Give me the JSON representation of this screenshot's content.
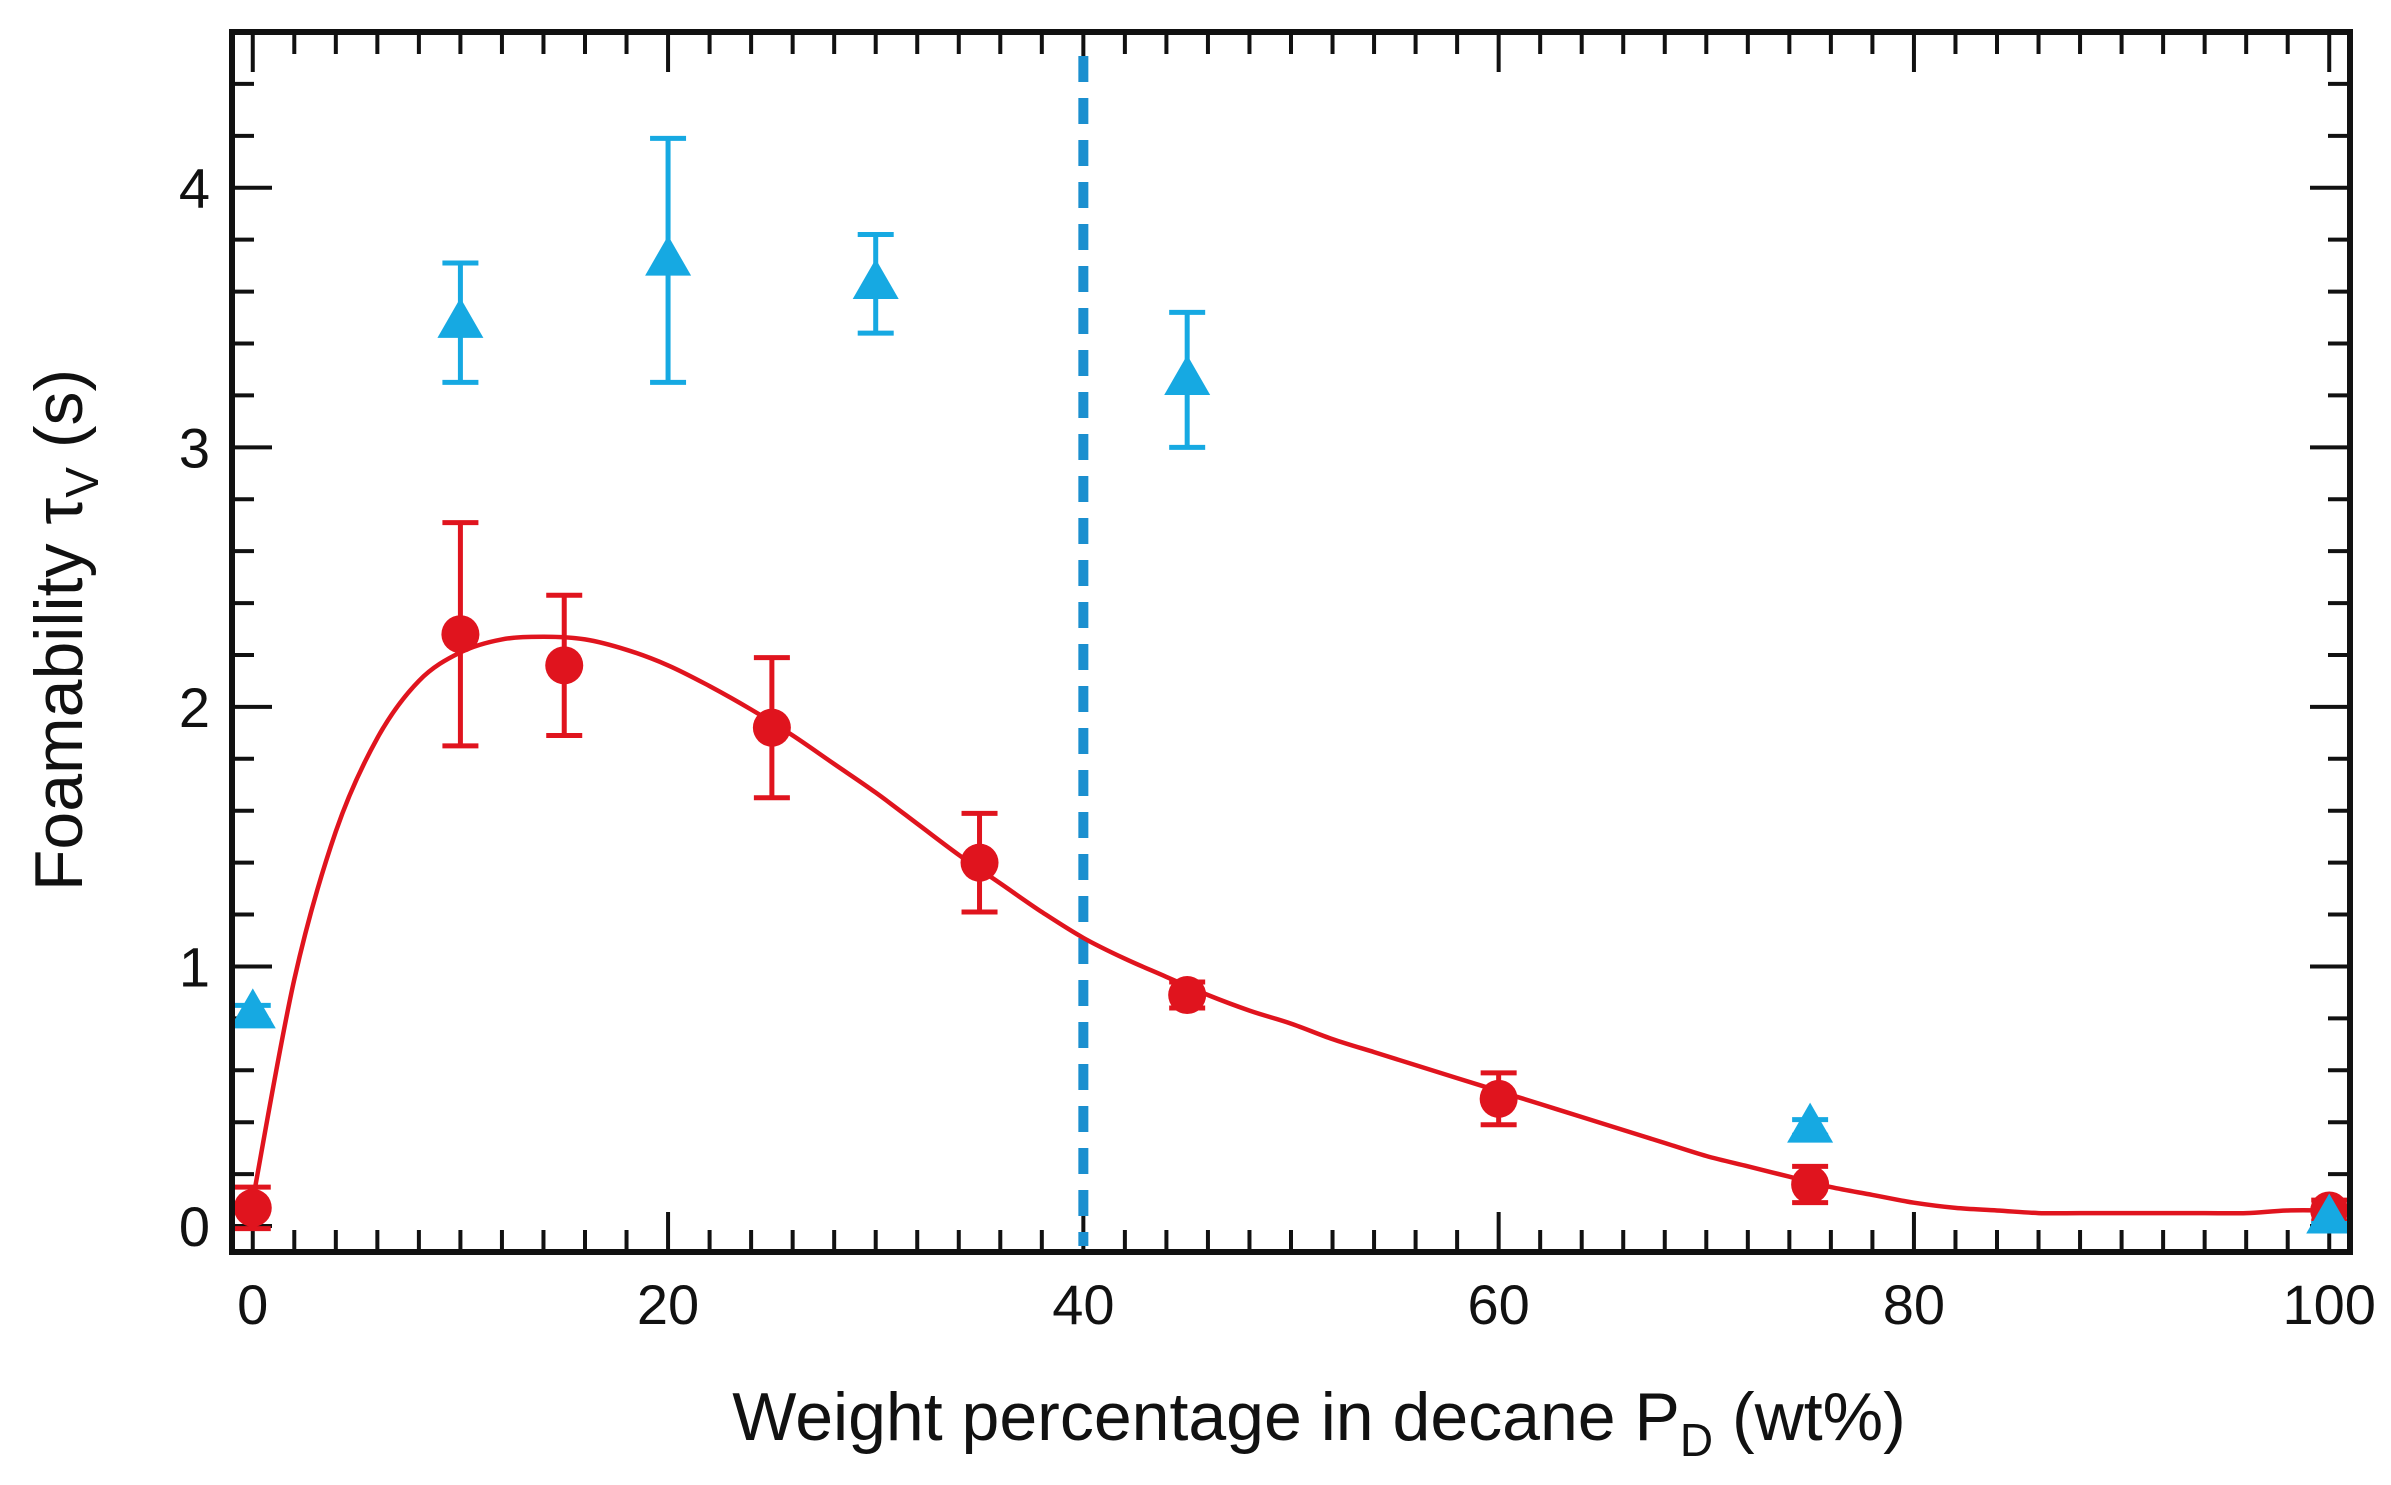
{
  "chart_data": {
    "type": "scatter",
    "title": "",
    "xlabel": {
      "main": "Weight percentage in decane P",
      "sub": "D",
      "unit": " (wt%)"
    },
    "ylabel": {
      "main": "Foamability τ",
      "sub": "V",
      "unit": " (s)"
    },
    "xlim": [
      -1,
      101
    ],
    "ylim": [
      -0.1,
      4.6
    ],
    "xticks": [
      0,
      20,
      40,
      60,
      80,
      100
    ],
    "yticks": [
      0,
      1,
      2,
      3,
      4
    ],
    "grid": false,
    "colors": {
      "red_series": "#e0141e",
      "blue_series": "#16a9e2",
      "dashed_line": "#1b8fcf",
      "axis": "#111111"
    },
    "series": [
      {
        "name": "red circles",
        "marker": "circle",
        "color": "#e0141e",
        "points": [
          {
            "x": 0,
            "y": 0.07,
            "err": 0.08
          },
          {
            "x": 10,
            "y": 2.28,
            "err": 0.43
          },
          {
            "x": 15,
            "y": 2.16,
            "err": 0.27
          },
          {
            "x": 25,
            "y": 1.92,
            "err": 0.27
          },
          {
            "x": 35,
            "y": 1.4,
            "err": 0.19
          },
          {
            "x": 45,
            "y": 0.89,
            "err": 0.05
          },
          {
            "x": 60,
            "y": 0.49,
            "err": 0.1
          },
          {
            "x": 75,
            "y": 0.16,
            "err": 0.07
          },
          {
            "x": 100,
            "y": 0.06,
            "err": 0.04
          }
        ]
      },
      {
        "name": "blue triangles",
        "marker": "triangle",
        "color": "#16a9e2",
        "points": [
          {
            "x": 0,
            "y": 0.82,
            "err": 0.03
          },
          {
            "x": 10,
            "y": 3.48,
            "err": 0.23
          },
          {
            "x": 20,
            "y": 3.72,
            "err": 0.47
          },
          {
            "x": 30,
            "y": 3.63,
            "err": 0.19
          },
          {
            "x": 45,
            "y": 3.26,
            "err": 0.26
          },
          {
            "x": 75,
            "y": 0.38,
            "err": 0.03
          },
          {
            "x": 100,
            "y": 0.03,
            "err": 0.02
          }
        ]
      }
    ],
    "fit_curve": {
      "name": "fit",
      "color": "#e0141e",
      "x": [
        0,
        2,
        4,
        6,
        8,
        10,
        12,
        14,
        16,
        18,
        20,
        22,
        24,
        26,
        28,
        30,
        32,
        34,
        36,
        38,
        40,
        42,
        44,
        46,
        48,
        50,
        52,
        54,
        56,
        58,
        60,
        62,
        64,
        66,
        68,
        70,
        72,
        74,
        76,
        78,
        80,
        82,
        84,
        86,
        88,
        90,
        92,
        94,
        96,
        98,
        100
      ],
      "y": [
        0.1,
        0.95,
        1.52,
        1.88,
        2.1,
        2.21,
        2.26,
        2.27,
        2.26,
        2.22,
        2.16,
        2.08,
        1.99,
        1.89,
        1.78,
        1.67,
        1.55,
        1.43,
        1.32,
        1.21,
        1.11,
        1.03,
        0.96,
        0.89,
        0.83,
        0.78,
        0.72,
        0.67,
        0.62,
        0.57,
        0.52,
        0.47,
        0.42,
        0.37,
        0.32,
        0.27,
        0.23,
        0.19,
        0.15,
        0.12,
        0.09,
        0.07,
        0.06,
        0.05,
        0.05,
        0.05,
        0.05,
        0.05,
        0.05,
        0.06,
        0.06
      ]
    },
    "vertical_line": {
      "x": 40,
      "style": "dashed",
      "color": "#1b8fcf"
    }
  }
}
